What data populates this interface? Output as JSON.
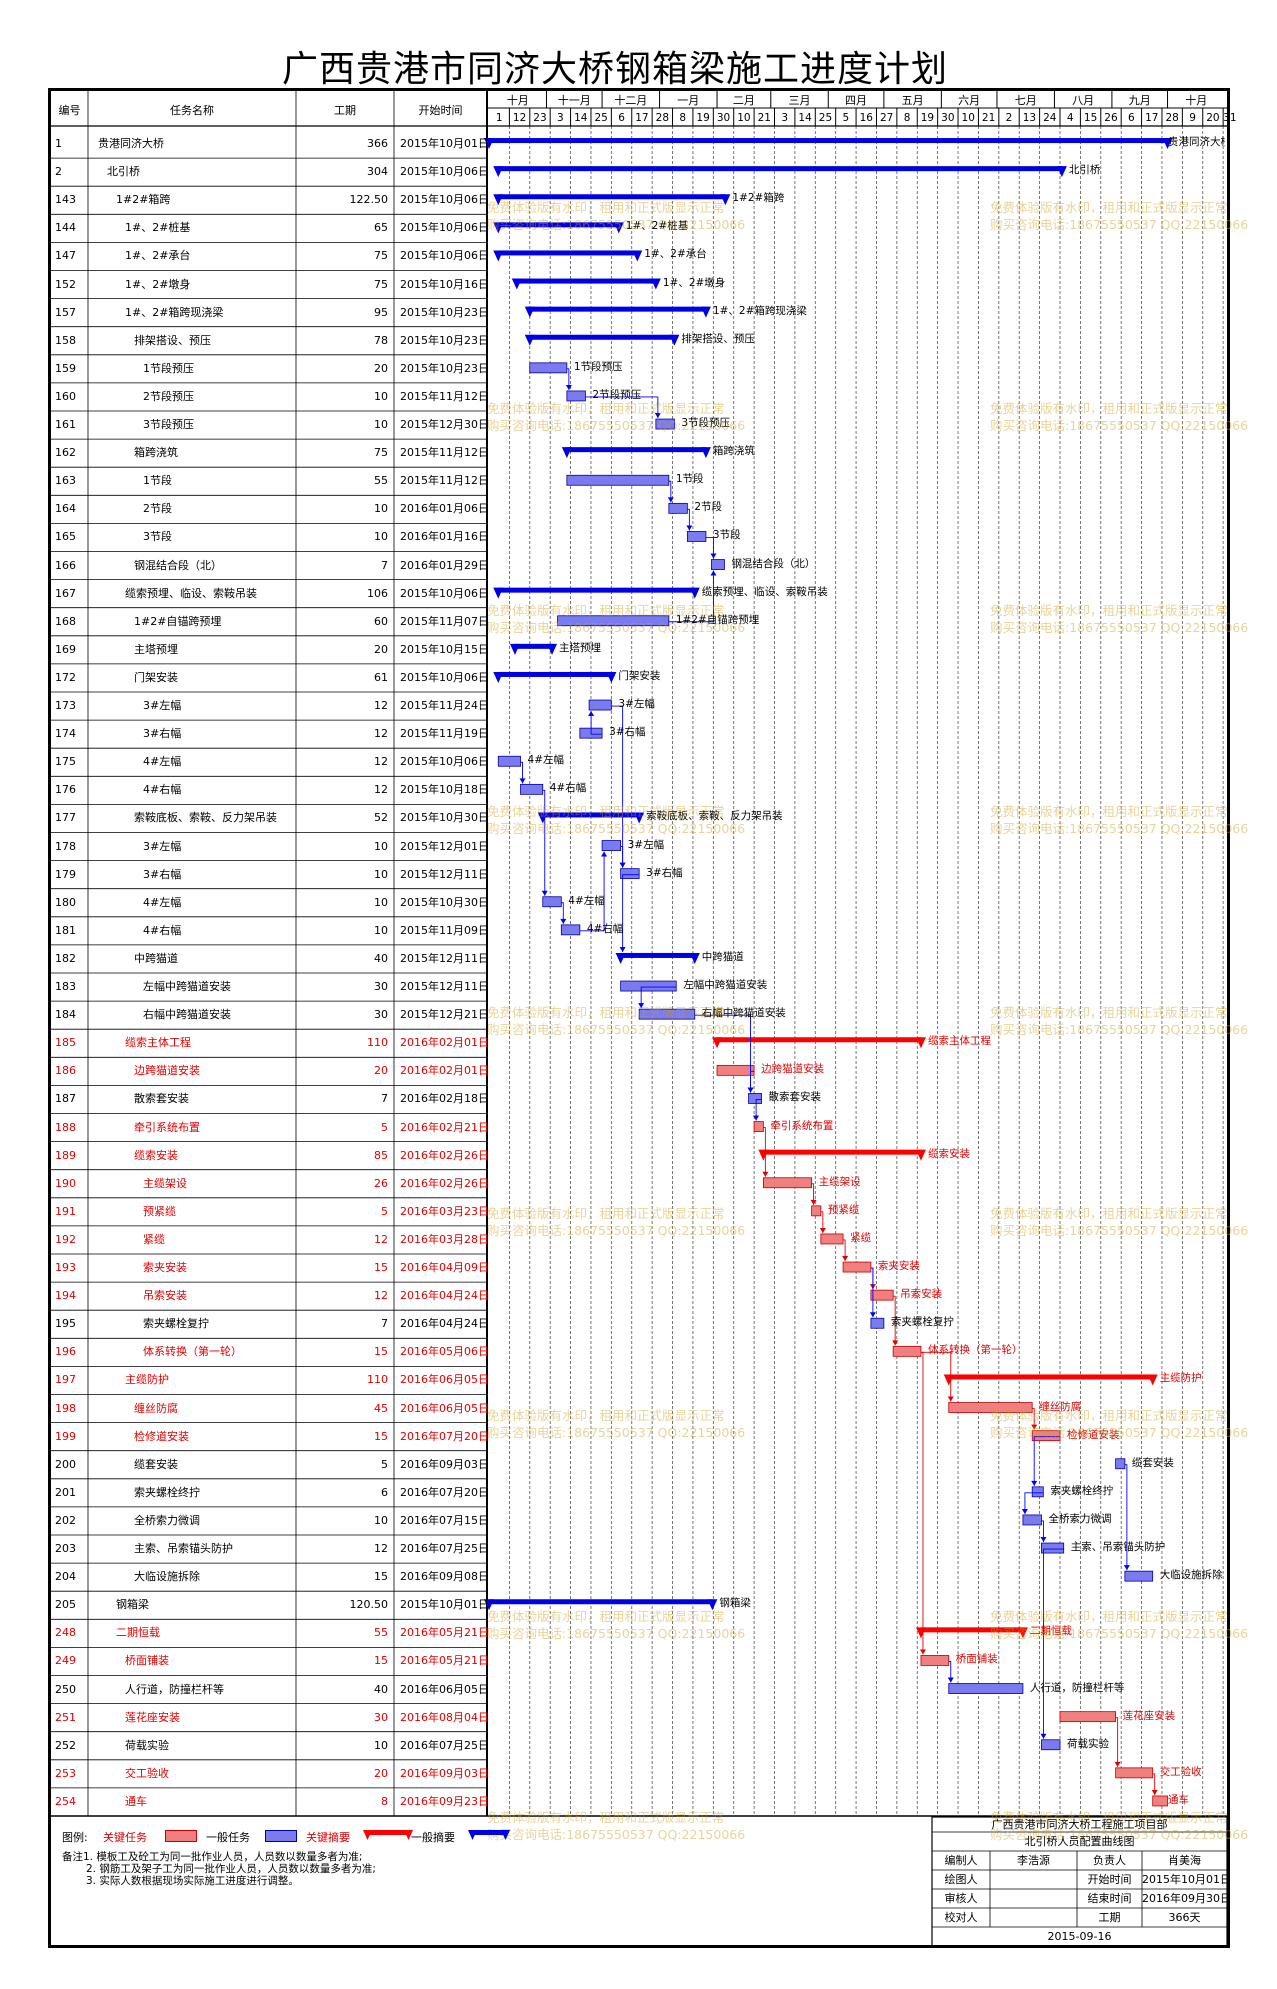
{
  "title": "广西贵港市同济大桥钢箱梁施工进度计划",
  "columns": {
    "id": "编号",
    "name": "任务名称",
    "duration": "工期",
    "start": "开始时间"
  },
  "month_labels": [
    "十月",
    "十一月",
    "十二月",
    "一月",
    "二月",
    "三月",
    "四月",
    "五月",
    "六月",
    "七月",
    "八月",
    "九月",
    "十月"
  ],
  "day_labels": [
    "1",
    "12",
    "23",
    "3",
    "14",
    "25",
    "6",
    "17",
    "28",
    "8",
    "19",
    "30",
    "10",
    "21",
    "3",
    "14",
    "25",
    "5",
    "16",
    "27",
    "8",
    "19",
    "30",
    "10",
    "21",
    "2",
    "13",
    "24",
    "4",
    "15",
    "26",
    "6",
    "17",
    "28",
    "9",
    "20",
    "31"
  ],
  "colors": {
    "critical_task": "#f08080",
    "normal_task": "#7b7bf0",
    "critical_summary": "#ff0000",
    "normal_summary": "#0000e6",
    "critical_text": "#e00000",
    "link": "#0000ff"
  },
  "chart_data": {
    "type": "gantt",
    "x_start": "2015-10-01",
    "x_end": "2016-10-31",
    "tasks": [
      {
        "id": "1",
        "name": "贵港同济大桥",
        "duration": "366",
        "start": "2015年10月01日",
        "label": "贵港同济大桥",
        "level": 0,
        "summary": true,
        "critical": false
      },
      {
        "id": "2",
        "name": "北引桥",
        "duration": "304",
        "start": "2015年10月06日",
        "label": "北引桥",
        "level": 1,
        "summary": true,
        "critical": false
      },
      {
        "id": "143",
        "name": "1#2#箱跨",
        "duration": "122.50",
        "start": "2015年10月06日",
        "label": "1#2#箱跨",
        "level": 2,
        "summary": true,
        "critical": false
      },
      {
        "id": "144",
        "name": "1#、2#桩基",
        "duration": "65",
        "start": "2015年10月06日",
        "label": "1#、2#桩基",
        "level": 3,
        "summary": true,
        "critical": false
      },
      {
        "id": "147",
        "name": "1#、2#承台",
        "duration": "75",
        "start": "2015年10月06日",
        "label": "1#、2#承台",
        "level": 3,
        "summary": true,
        "critical": false
      },
      {
        "id": "152",
        "name": "1#、2#墩身",
        "duration": "75",
        "start": "2015年10月16日",
        "label": "1#、2#墩身",
        "level": 3,
        "summary": true,
        "critical": false
      },
      {
        "id": "157",
        "name": "1#、2#箱跨现浇梁",
        "duration": "95",
        "start": "2015年10月23日",
        "label": "1#、2#箱跨现浇梁",
        "level": 3,
        "summary": true,
        "critical": false
      },
      {
        "id": "158",
        "name": "排架搭设、预压",
        "duration": "78",
        "start": "2015年10月23日",
        "label": "排架搭设、预压",
        "level": 4,
        "summary": true,
        "critical": false
      },
      {
        "id": "159",
        "name": "1节段预压",
        "duration": "20",
        "start": "2015年10月23日",
        "label": "1节段预压",
        "level": 5,
        "summary": false,
        "critical": false
      },
      {
        "id": "160",
        "name": "2节段预压",
        "duration": "10",
        "start": "2015年11月12日",
        "label": "2节段预压",
        "level": 5,
        "summary": false,
        "critical": false
      },
      {
        "id": "161",
        "name": "3节段预压",
        "duration": "10",
        "start": "2015年12月30日",
        "label": "3节段预压",
        "level": 5,
        "summary": false,
        "critical": false
      },
      {
        "id": "162",
        "name": "箱跨浇筑",
        "duration": "75",
        "start": "2015年11月12日",
        "label": "箱跨浇筑",
        "level": 4,
        "summary": true,
        "critical": false
      },
      {
        "id": "163",
        "name": "1节段",
        "duration": "55",
        "start": "2015年11月12日",
        "label": "1节段",
        "level": 5,
        "summary": false,
        "critical": false
      },
      {
        "id": "164",
        "name": "2节段",
        "duration": "10",
        "start": "2016年01月06日",
        "label": "2节段",
        "level": 5,
        "summary": false,
        "critical": false
      },
      {
        "id": "165",
        "name": "3节段",
        "duration": "10",
        "start": "2016年01月16日",
        "label": "3节段",
        "level": 5,
        "summary": false,
        "critical": false
      },
      {
        "id": "166",
        "name": "钢混结合段（北）",
        "duration": "7",
        "start": "2016年01月29日",
        "label": "钢混结合段（北）",
        "level": 4,
        "summary": false,
        "critical": false
      },
      {
        "id": "167",
        "name": "缆索预埋、临设、索鞍吊装",
        "duration": "106",
        "start": "2015年10月06日",
        "label": "缆索预埋、临设、索鞍吊装",
        "level": 3,
        "summary": true,
        "critical": false
      },
      {
        "id": "168",
        "name": "1#2#自锚跨预埋",
        "duration": "60",
        "start": "2015年11月07日",
        "label": "1#2#自锚跨预埋",
        "level": 4,
        "summary": false,
        "critical": false
      },
      {
        "id": "169",
        "name": "主塔预埋",
        "duration": "20",
        "start": "2015年10月15日",
        "label": "主塔预埋",
        "level": 4,
        "summary": true,
        "critical": false
      },
      {
        "id": "172",
        "name": "门架安装",
        "duration": "61",
        "start": "2015年10月06日",
        "label": "门架安装",
        "level": 4,
        "summary": true,
        "critical": false
      },
      {
        "id": "173",
        "name": "3#左幅",
        "duration": "12",
        "start": "2015年11月24日",
        "label": "3#左幅",
        "level": 5,
        "summary": false,
        "critical": false
      },
      {
        "id": "174",
        "name": "3#右幅",
        "duration": "12",
        "start": "2015年11月19日",
        "label": "3#右幅",
        "level": 5,
        "summary": false,
        "critical": false
      },
      {
        "id": "175",
        "name": "4#左幅",
        "duration": "12",
        "start": "2015年10月06日",
        "label": "4#左幅",
        "level": 5,
        "summary": false,
        "critical": false
      },
      {
        "id": "176",
        "name": "4#右幅",
        "duration": "12",
        "start": "2015年10月18日",
        "label": "4#右幅",
        "level": 5,
        "summary": false,
        "critical": false
      },
      {
        "id": "177",
        "name": "索鞍底板、索鞍、反力架吊装",
        "duration": "52",
        "start": "2015年10月30日",
        "label": "索鞍底板、索鞍、反力架吊装",
        "level": 4,
        "summary": true,
        "critical": false
      },
      {
        "id": "178",
        "name": "3#左幅",
        "duration": "10",
        "start": "2015年12月01日",
        "label": "3#左幅",
        "level": 5,
        "summary": false,
        "critical": false
      },
      {
        "id": "179",
        "name": "3#右幅",
        "duration": "10",
        "start": "2015年12月11日",
        "label": "3#右幅",
        "level": 5,
        "summary": false,
        "critical": false
      },
      {
        "id": "180",
        "name": "4#左幅",
        "duration": "10",
        "start": "2015年10月30日",
        "label": "4#左幅",
        "level": 5,
        "summary": false,
        "critical": false
      },
      {
        "id": "181",
        "name": "4#右幅",
        "duration": "10",
        "start": "2015年11月09日",
        "label": "4#右幅",
        "level": 5,
        "summary": false,
        "critical": false
      },
      {
        "id": "182",
        "name": "中跨猫道",
        "duration": "40",
        "start": "2015年12月11日",
        "label": "中跨猫道",
        "level": 4,
        "summary": true,
        "critical": false
      },
      {
        "id": "183",
        "name": "左幅中跨猫道安装",
        "duration": "30",
        "start": "2015年12月11日",
        "label": "左幅中跨猫道安装",
        "level": 5,
        "summary": false,
        "critical": false
      },
      {
        "id": "184",
        "name": "右幅中跨猫道安装",
        "duration": "30",
        "start": "2015年12月21日",
        "label": "右幅中跨猫道安装",
        "level": 5,
        "summary": false,
        "critical": false
      },
      {
        "id": "185",
        "name": "缆索主体工程",
        "duration": "110",
        "start": "2016年02月01日",
        "label": "缆索主体工程",
        "level": 3,
        "summary": true,
        "critical": true
      },
      {
        "id": "186",
        "name": "边跨猫道安装",
        "duration": "20",
        "start": "2016年02月01日",
        "label": "边跨猫道安装",
        "level": 4,
        "summary": false,
        "critical": true
      },
      {
        "id": "187",
        "name": "散索套安装",
        "duration": "7",
        "start": "2016年02月18日",
        "label": "散索套安装",
        "level": 4,
        "summary": false,
        "critical": false
      },
      {
        "id": "188",
        "name": "牵引系统布置",
        "duration": "5",
        "start": "2016年02月21日",
        "label": "牵引系统布置",
        "level": 4,
        "summary": false,
        "critical": true
      },
      {
        "id": "189",
        "name": "缆索安装",
        "duration": "85",
        "start": "2016年02月26日",
        "label": "缆索安装",
        "level": 4,
        "summary": true,
        "critical": true
      },
      {
        "id": "190",
        "name": "主缆架设",
        "duration": "26",
        "start": "2016年02月26日",
        "label": "主缆架设",
        "level": 5,
        "summary": false,
        "critical": true
      },
      {
        "id": "191",
        "name": "预紧缆",
        "duration": "5",
        "start": "2016年03月23日",
        "label": "预紧缆",
        "level": 5,
        "summary": false,
        "critical": true
      },
      {
        "id": "192",
        "name": "紧缆",
        "duration": "12",
        "start": "2016年03月28日",
        "label": "紧缆",
        "level": 5,
        "summary": false,
        "critical": true
      },
      {
        "id": "193",
        "name": "索夹安装",
        "duration": "15",
        "start": "2016年04月09日",
        "label": "索夹安装",
        "level": 5,
        "summary": false,
        "critical": true
      },
      {
        "id": "194",
        "name": "吊索安装",
        "duration": "12",
        "start": "2016年04月24日",
        "label": "吊索安装",
        "level": 5,
        "summary": false,
        "critical": true
      },
      {
        "id": "195",
        "name": "索夹螺栓复拧",
        "duration": "7",
        "start": "2016年04月24日",
        "label": "索夹螺栓复拧",
        "level": 5,
        "summary": false,
        "critical": false
      },
      {
        "id": "196",
        "name": "体系转换（第一轮）",
        "duration": "15",
        "start": "2016年05月06日",
        "label": "体系转换（第一轮）",
        "level": 5,
        "summary": false,
        "critical": true
      },
      {
        "id": "197",
        "name": "主缆防护",
        "duration": "110",
        "start": "2016年06月05日",
        "label": "主缆防护",
        "level": 3,
        "summary": true,
        "critical": true
      },
      {
        "id": "198",
        "name": "缠丝防腐",
        "duration": "45",
        "start": "2016年06月05日",
        "label": "缠丝防腐",
        "level": 4,
        "summary": false,
        "critical": true
      },
      {
        "id": "199",
        "name": "检修道安装",
        "duration": "15",
        "start": "2016年07月20日",
        "label": "检修道安装",
        "level": 4,
        "summary": false,
        "critical": true
      },
      {
        "id": "200",
        "name": "缆套安装",
        "duration": "5",
        "start": "2016年09月03日",
        "label": "缆套安装",
        "level": 4,
        "summary": false,
        "critical": false
      },
      {
        "id": "201",
        "name": "索夹螺栓终拧",
        "duration": "6",
        "start": "2016年07月20日",
        "label": "索夹螺栓终拧",
        "level": 4,
        "summary": false,
        "critical": false
      },
      {
        "id": "202",
        "name": "全桥索力微调",
        "duration": "10",
        "start": "2016年07月15日",
        "label": "全桥索力微调",
        "level": 4,
        "summary": false,
        "critical": false
      },
      {
        "id": "203",
        "name": "主索、吊索锚头防护",
        "duration": "12",
        "start": "2016年07月25日",
        "label": "主索、吊索锚头防护",
        "level": 4,
        "summary": false,
        "critical": false
      },
      {
        "id": "204",
        "name": "大临设施拆除",
        "duration": "15",
        "start": "2016年09月08日",
        "label": "大临设施拆除",
        "level": 4,
        "summary": false,
        "critical": false
      },
      {
        "id": "205",
        "name": "钢箱梁",
        "duration": "120.50",
        "start": "2015年10月01日",
        "label": "钢箱梁",
        "level": 2,
        "summary": true,
        "critical": false
      },
      {
        "id": "248",
        "name": "二期恒载",
        "duration": "55",
        "start": "2016年05月21日",
        "label": "二期恒载",
        "level": 2,
        "summary": true,
        "critical": true
      },
      {
        "id": "249",
        "name": "桥面铺装",
        "duration": "15",
        "start": "2016年05月21日",
        "label": "桥面铺装",
        "level": 3,
        "summary": false,
        "critical": true
      },
      {
        "id": "250",
        "name": "人行道，防撞栏杆等",
        "duration": "40",
        "start": "2016年06月05日",
        "label": "人行道，防撞栏杆等",
        "level": 3,
        "summary": false,
        "critical": false
      },
      {
        "id": "251",
        "name": "莲花座安装",
        "duration": "30",
        "start": "2016年08月04日",
        "label": "莲花座安装",
        "level": 3,
        "summary": false,
        "critical": true
      },
      {
        "id": "252",
        "name": "荷载实验",
        "duration": "10",
        "start": "2016年07月25日",
        "label": "荷载实验",
        "level": 3,
        "summary": false,
        "critical": false
      },
      {
        "id": "253",
        "name": "交工验收",
        "duration": "20",
        "start": "2016年09月03日",
        "label": "交工验收",
        "level": 3,
        "summary": false,
        "critical": true
      },
      {
        "id": "254",
        "name": "通车",
        "duration": "8",
        "start": "2016年09月23日",
        "label": "通车",
        "level": 3,
        "summary": false,
        "critical": true
      }
    ]
  },
  "legend": {
    "title": "图例:",
    "critical_task": "关键任务",
    "normal_task": "一般任务",
    "critical_summary": "关键摘要",
    "normal_summary": "一般摘要"
  },
  "notes": {
    "n1": "备注1. 模板工及砼工为同一批作业人员，人员数以数量多者为准;",
    "n2": "2. 钢筋工及架子工为同一批作业人员，人员数以数量多者为准;",
    "n3": "3. 实际人数根据现场实际施工进度进行调整。"
  },
  "title_block": {
    "org": "广西贵港市同济大桥工程施工项目部",
    "drawing": "北引桥人员配置曲线图",
    "r1": [
      "编制人",
      "李浩源",
      "负责人",
      "肖美海"
    ],
    "r2": [
      "绘图人",
      "",
      "开始时间",
      "2015年10月01日"
    ],
    "r3": [
      "审核人",
      "",
      "结束时间",
      "2016年09月30日"
    ],
    "r4": [
      "校对人",
      "",
      "工期",
      "366天"
    ],
    "date": "2015-09-16"
  },
  "watermark": {
    "line1": "免费体验版有水印，租用和正式版显示正常",
    "line2": "购买咨询电话:18675550537 QQ:22150066"
  }
}
